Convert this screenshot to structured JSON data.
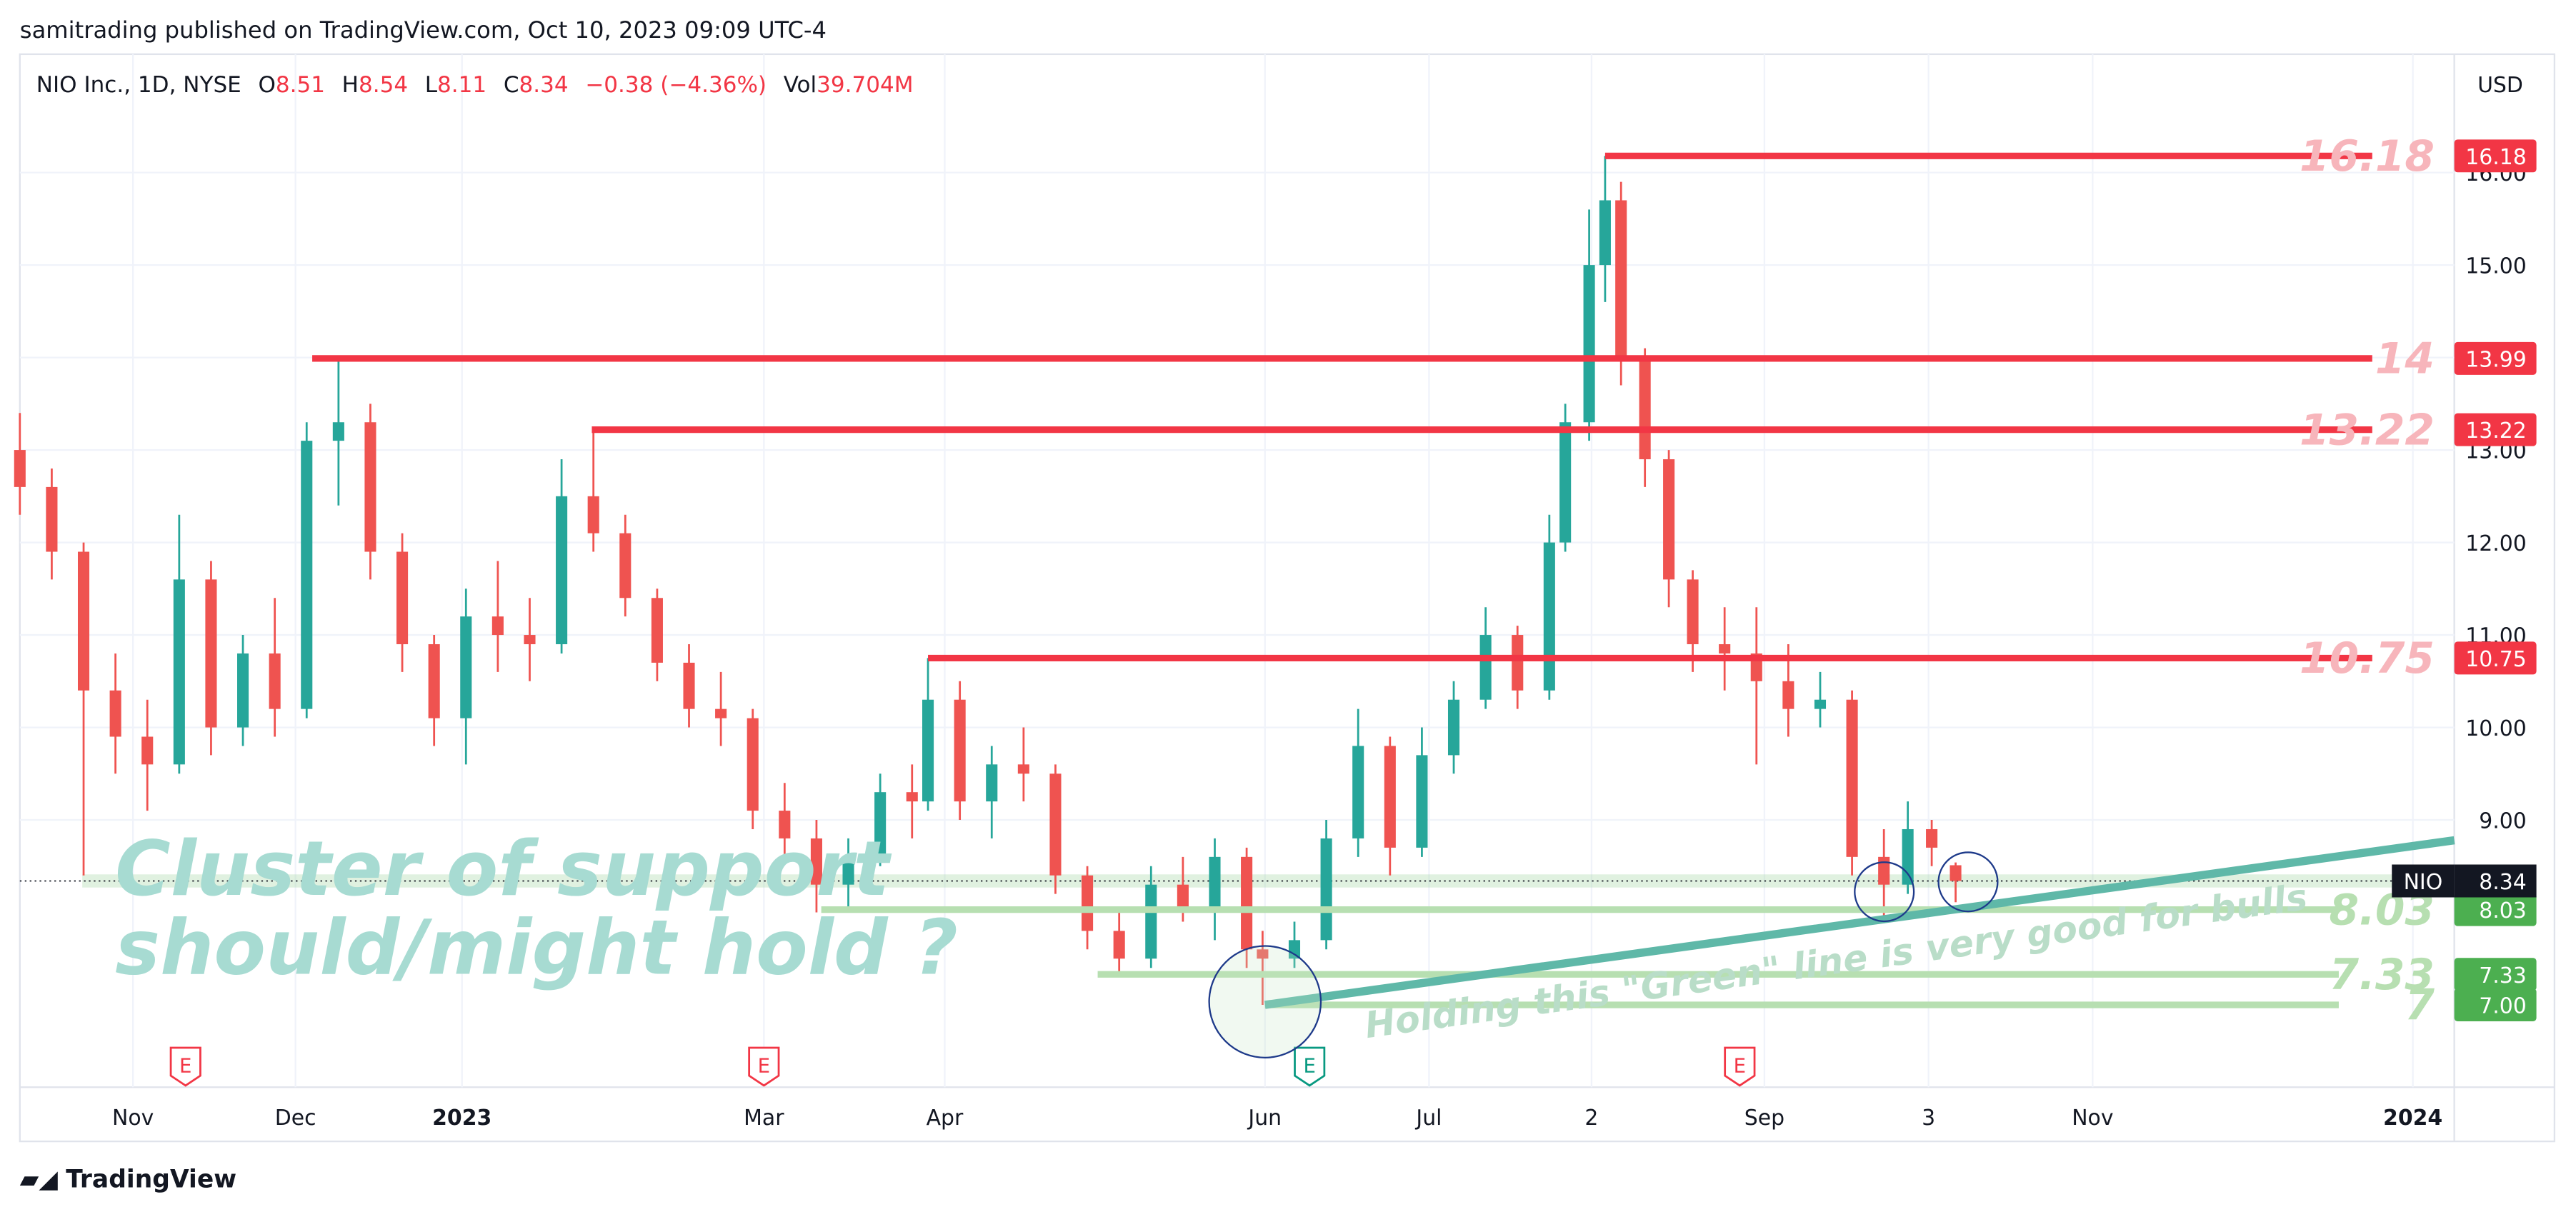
{
  "header": {
    "publisher": "samitrading published on TradingView.com, Oct 10, 2023 09:09 UTC-4",
    "currency": "USD",
    "brand": "TradingView"
  },
  "chart_data": {
    "type": "candlestick",
    "title": "NIO Inc., 1D, NYSE",
    "legend_items": [
      {
        "label": "O",
        "value": "8.51"
      },
      {
        "label": "H",
        "value": "8.54"
      },
      {
        "label": "L",
        "value": "8.11"
      },
      {
        "label": "C",
        "value": "8.34"
      }
    ],
    "change": "−0.38",
    "change_pct": "(−4.36%)",
    "volume_label": "Vol",
    "volume": "39.704M",
    "up_color": "#26a69a",
    "down_color": "#ef5350",
    "x": [
      0,
      4,
      8,
      12,
      16,
      20,
      24,
      28,
      32,
      36,
      40,
      44,
      48,
      52,
      56,
      60,
      64,
      68,
      72,
      76,
      80,
      84,
      88,
      92,
      96,
      100,
      104,
      108,
      112,
      114,
      118,
      122,
      126,
      130,
      134,
      138,
      142,
      146,
      150,
      154,
      156,
      160,
      164,
      168,
      172,
      176,
      180,
      184,
      188,
      192,
      194,
      197,
      199,
      201,
      204,
      207,
      210,
      214,
      218,
      222,
      226,
      230,
      234,
      237,
      240,
      243
    ],
    "open": [
      13.0,
      12.6,
      11.9,
      10.4,
      9.9,
      9.6,
      11.6,
      10.0,
      10.8,
      10.2,
      13.1,
      13.3,
      11.9,
      10.9,
      10.1,
      11.2,
      11.0,
      10.9,
      12.5,
      12.1,
      11.4,
      10.7,
      10.2,
      10.1,
      9.1,
      8.8,
      8.3,
      8.6,
      9.3,
      9.2,
      10.3,
      9.2,
      9.6,
      9.5,
      8.4,
      7.8,
      7.5,
      8.3,
      8.0,
      8.6,
      7.6,
      7.5,
      7.7,
      8.8,
      9.8,
      8.7,
      9.7,
      10.3,
      11.0,
      10.4,
      12.0,
      13.3,
      15.0,
      15.7,
      14.0,
      12.9,
      11.6,
      10.9,
      10.8,
      10.5,
      10.2,
      10.3,
      8.6,
      8.3,
      8.9,
      8.51
    ],
    "high": [
      13.4,
      12.8,
      12.0,
      10.8,
      10.3,
      12.3,
      11.8,
      11.0,
      11.4,
      13.3,
      13.99,
      13.5,
      12.1,
      11.0,
      11.5,
      11.8,
      11.4,
      12.9,
      13.22,
      12.3,
      11.5,
      10.9,
      10.6,
      10.2,
      9.4,
      9.0,
      8.8,
      9.5,
      9.6,
      10.75,
      10.5,
      9.8,
      10.0,
      9.6,
      8.5,
      8.0,
      8.5,
      8.6,
      8.8,
      8.7,
      7.8,
      7.9,
      9.0,
      10.2,
      9.9,
      10.0,
      10.5,
      11.3,
      11.1,
      12.3,
      13.5,
      15.6,
      16.18,
      15.9,
      14.1,
      13.0,
      11.7,
      11.3,
      11.3,
      10.9,
      10.6,
      10.4,
      8.9,
      9.2,
      9.0,
      8.54
    ],
    "low": [
      12.3,
      11.6,
      8.4,
      9.5,
      9.1,
      9.5,
      9.7,
      9.8,
      9.9,
      10.1,
      12.4,
      11.6,
      10.6,
      9.8,
      9.6,
      10.6,
      10.5,
      10.8,
      11.9,
      11.2,
      10.5,
      10.0,
      9.8,
      8.9,
      8.6,
      8.0,
      8.0,
      8.5,
      8.8,
      9.1,
      9.0,
      8.8,
      9.2,
      8.2,
      7.6,
      7.33,
      7.4,
      7.9,
      7.7,
      7.4,
      7.0,
      7.4,
      7.6,
      8.6,
      8.4,
      8.6,
      9.5,
      10.2,
      10.2,
      10.3,
      11.9,
      13.1,
      14.6,
      13.7,
      12.6,
      11.3,
      10.6,
      10.4,
      9.6,
      9.9,
      10.0,
      8.4,
      7.9,
      8.2,
      8.5,
      8.11
    ],
    "close": [
      12.6,
      11.9,
      10.4,
      9.9,
      9.6,
      11.6,
      10.0,
      10.8,
      10.2,
      13.1,
      13.3,
      11.9,
      10.9,
      10.1,
      11.2,
      11.0,
      10.9,
      12.5,
      12.1,
      11.4,
      10.7,
      10.2,
      10.1,
      9.1,
      8.8,
      8.3,
      8.6,
      9.3,
      9.2,
      10.3,
      9.2,
      9.6,
      9.5,
      8.4,
      7.8,
      7.5,
      8.3,
      8.0,
      8.6,
      7.6,
      7.5,
      7.7,
      8.8,
      9.8,
      8.7,
      9.7,
      10.3,
      11.0,
      10.4,
      12.0,
      13.3,
      15.0,
      15.7,
      14.0,
      12.9,
      11.6,
      10.9,
      10.8,
      10.5,
      10.2,
      10.3,
      8.6,
      8.3,
      8.9,
      8.7,
      8.34
    ],
    "xlim": [
      0,
      305.6
    ],
    "xticks": [
      {
        "value": 14.2,
        "label": "Nov"
      },
      {
        "value": 34.6,
        "label": "Dec"
      },
      {
        "value": 55.5,
        "label": "2023"
      },
      {
        "value": 93.4,
        "label": "Mar"
      },
      {
        "value": 116.1,
        "label": "Apr"
      },
      {
        "value": 156.3,
        "label": "Jun"
      },
      {
        "value": 176.9,
        "label": "Jul"
      },
      {
        "value": 197.3,
        "label": "2"
      },
      {
        "value": 219,
        "label": "Sep"
      },
      {
        "value": 239.6,
        "label": "3"
      },
      {
        "value": 260.2,
        "label": "Nov"
      },
      {
        "value": 300.4,
        "label": "2024"
      }
    ],
    "ylim": [
      6.11,
      17.28
    ],
    "yticks": [
      {
        "value": 9,
        "label": "9.00"
      },
      {
        "value": 10,
        "label": "10.00"
      },
      {
        "value": 11,
        "label": "11.00"
      },
      {
        "value": 12,
        "label": "12.00"
      },
      {
        "value": 13,
        "label": "13.00"
      },
      {
        "value": 14,
        "label": "14.00"
      },
      {
        "value": 15,
        "label": "15.00"
      },
      {
        "value": 16,
        "label": "16.00"
      }
    ],
    "grid": true,
    "levels": [
      {
        "value": 16.18,
        "label": "16.18",
        "tag": "16.18",
        "color": "#f23645",
        "label_color": "#f7b5bb",
        "x": [
          199,
          295.3
        ]
      },
      {
        "value": 13.99,
        "label": "14",
        "tag": "13.99",
        "color": "#f23645",
        "label_color": "#f7b5bb",
        "x": [
          36.7,
          295.3
        ]
      },
      {
        "value": 13.22,
        "label": "13.22",
        "tag": "13.22",
        "color": "#f23645",
        "label_color": "#f7b5bb",
        "x": [
          71.8,
          295.3
        ]
      },
      {
        "value": 10.75,
        "label": "10.75",
        "tag": "10.75",
        "color": "#f23645",
        "label_color": "#f7b5bb",
        "x": [
          114,
          295.3
        ]
      },
      {
        "value": 8.03,
        "label": "8.03",
        "tag": "8.03",
        "color": "#b7dfb1",
        "label_color": "#b7dfb1",
        "tag_color": "#4caf50",
        "x": [
          100.6,
          291.1
        ]
      },
      {
        "value": 7.33,
        "label": "7.33",
        "tag": "7.33",
        "color": "#b7dfb1",
        "label_color": "#b7dfb1",
        "tag_color": "#4caf50",
        "x": [
          135.3,
          291.1
        ]
      },
      {
        "value": 7,
        "label": "7",
        "tag": "7.00",
        "color": "#b7dfb1",
        "label_color": "#b7dfb1",
        "tag_color": "#4caf50",
        "x": [
          156.3,
          291.1
        ]
      }
    ],
    "last": {
      "value": 8.34,
      "label": "NIO"
    },
    "trendline": {
      "x": [
        156.3,
        305.6
      ],
      "y": [
        7,
        8.78
      ],
      "color": "#5fb8a8"
    },
    "earnings": [
      {
        "x": 20.8,
        "label": "E",
        "color": "#f23645"
      },
      {
        "x": 93.4,
        "label": "E",
        "color": "#f23645"
      },
      {
        "x": 161.9,
        "label": "E",
        "color": "#089981"
      },
      {
        "x": 215.9,
        "label": "E",
        "color": "#f23645"
      }
    ],
    "annotations": [
      "Cluster of support",
      "should/might hold ?",
      "Holding this \"Green\" line is very good for bulls"
    ]
  }
}
